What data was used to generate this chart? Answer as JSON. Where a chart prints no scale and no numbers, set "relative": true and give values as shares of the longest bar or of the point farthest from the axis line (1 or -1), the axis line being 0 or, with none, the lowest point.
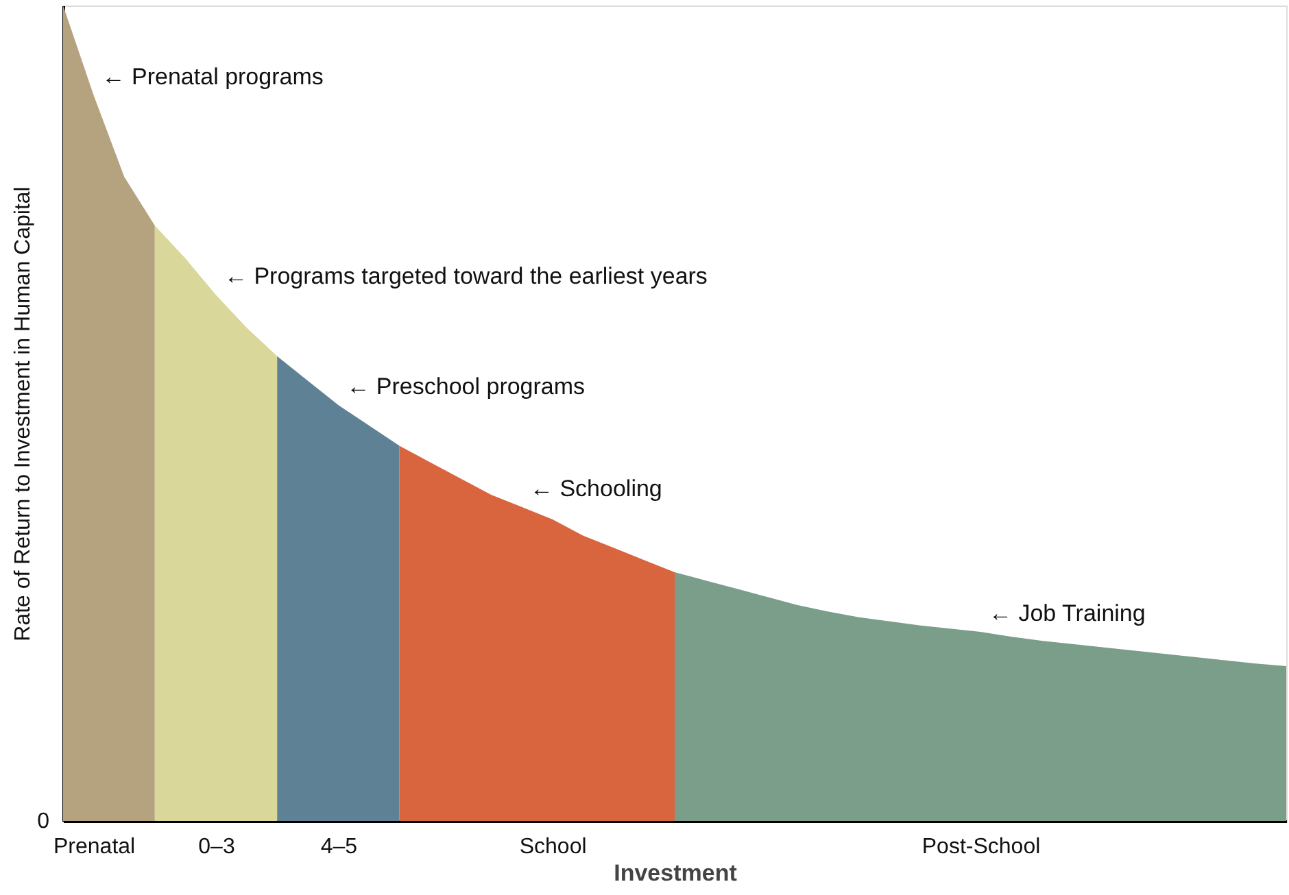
{
  "chart_data": {
    "type": "area",
    "relative": true,
    "xlabel": "Investment",
    "ylabel": "Rate of Return to Investment in Human Capital",
    "categories": [
      null,
      "Prenatal",
      null,
      null,
      null,
      "0–3",
      null,
      null,
      null,
      "4–5",
      null,
      null,
      null,
      null,
      null,
      null,
      "School",
      null,
      null,
      null,
      null,
      null,
      null,
      null,
      null,
      null,
      null,
      null,
      null,
      null,
      "Post-School",
      null,
      null,
      null,
      null,
      null,
      null,
      null,
      null,
      null,
      null
    ],
    "series": [
      {
        "color": "#b5a27e",
        "values": [
          1.0,
          0.89,
          0.79,
          0.73,
          null,
          null,
          null,
          null,
          null,
          null,
          null,
          null,
          null,
          null,
          null,
          null,
          null,
          null,
          null,
          null,
          null,
          null,
          null,
          null,
          null,
          null,
          null,
          null,
          null,
          null,
          null,
          null,
          null,
          null,
          null,
          null,
          null,
          null,
          null,
          null,
          null
        ]
      },
      {
        "color": "#d9d79a",
        "values": [
          null,
          null,
          null,
          0.73,
          0.69,
          0.645,
          0.605,
          0.57,
          null,
          null,
          null,
          null,
          null,
          null,
          null,
          null,
          null,
          null,
          null,
          null,
          null,
          null,
          null,
          null,
          null,
          null,
          null,
          null,
          null,
          null,
          null,
          null,
          null,
          null,
          null,
          null,
          null,
          null,
          null,
          null,
          null
        ]
      },
      {
        "color": "#5f8196",
        "values": [
          null,
          null,
          null,
          null,
          null,
          null,
          null,
          0.57,
          0.54,
          0.51,
          0.485,
          0.46,
          null,
          null,
          null,
          null,
          null,
          null,
          null,
          null,
          null,
          null,
          null,
          null,
          null,
          null,
          null,
          null,
          null,
          null,
          null,
          null,
          null,
          null,
          null,
          null,
          null,
          null,
          null,
          null,
          null
        ]
      },
      {
        "color": "#d9653f",
        "values": [
          null,
          null,
          null,
          null,
          null,
          null,
          null,
          null,
          null,
          null,
          null,
          0.46,
          0.44,
          0.42,
          0.4,
          0.385,
          0.37,
          0.35,
          0.335,
          0.32,
          0.305,
          null,
          null,
          null,
          null,
          null,
          null,
          null,
          null,
          null,
          null,
          null,
          null,
          null,
          null,
          null,
          null,
          null,
          null,
          null,
          null
        ]
      },
      {
        "color": "#7a9e8a",
        "values": [
          null,
          null,
          null,
          null,
          null,
          null,
          null,
          null,
          null,
          null,
          null,
          null,
          null,
          null,
          null,
          null,
          null,
          null,
          null,
          null,
          0.305,
          0.295,
          0.285,
          0.275,
          0.265,
          0.257,
          0.25,
          0.245,
          0.24,
          0.236,
          0.232,
          0.226,
          0.221,
          0.217,
          0.213,
          0.209,
          0.205,
          0.201,
          0.197,
          0.193,
          0.19
        ]
      }
    ],
    "annotations": [
      "← Prenatal programs",
      "← Programs targeted toward the earliest years",
      "← Preschool programs",
      "← Schooling",
      "← Job Training",
      "0"
    ],
    "grid": false,
    "legend": false
  }
}
